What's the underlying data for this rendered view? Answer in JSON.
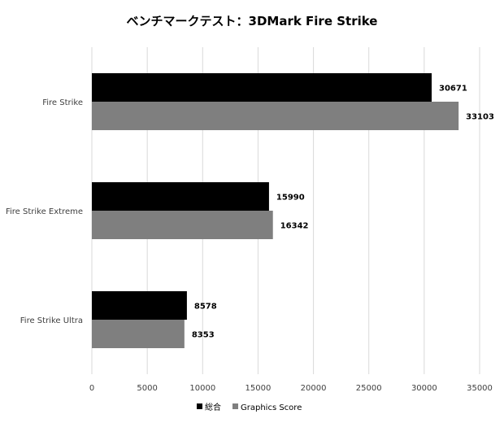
{
  "chart_data": {
    "type": "bar",
    "orientation": "horizontal",
    "title": "ベンチマークテスト：3DMark Fire Strike",
    "categories": [
      "Fire Strike",
      "Fire Strike Extreme",
      "Fire Strike Ultra"
    ],
    "series": [
      {
        "name": "総合",
        "color": "#000000",
        "values": [
          30671,
          15990,
          8578
        ]
      },
      {
        "name": "Graphics Score",
        "color": "#7f7f7f",
        "values": [
          33103,
          16342,
          8353
        ]
      }
    ],
    "xlim": [
      0,
      35000
    ],
    "xticks": [
      0,
      5000,
      10000,
      15000,
      20000,
      25000,
      30000,
      35000
    ],
    "grid": true,
    "legend_position": "bottom",
    "data_labels": true
  }
}
